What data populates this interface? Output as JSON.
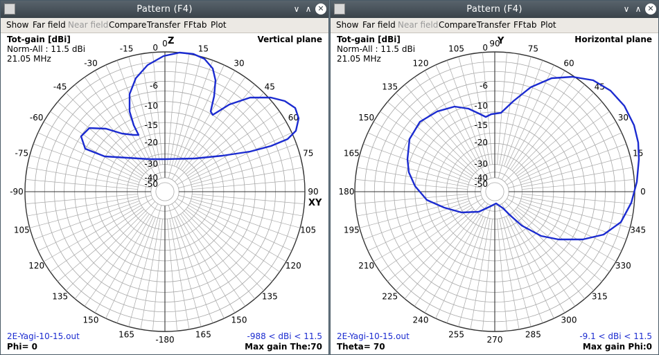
{
  "windows": [
    {
      "title": "Pattern    (F4)",
      "menu": [
        "Show",
        "Far field",
        "Near field",
        "Compare",
        "Transfer",
        "FFtab",
        "Plot"
      ],
      "menu_disabled": [
        "Near field"
      ],
      "info": {
        "quantity": "Tot-gain [dBi]",
        "norm": "Norm-All : 11.5 dBi",
        "freq": "21.05 MHz"
      },
      "plane": "Vertical plane",
      "footer": {
        "file": "2E-Yagi-10-15.out",
        "range": "-988 < dBi < 11.5",
        "cut": "Phi= 0",
        "max": "Max gain The:70"
      },
      "axes": {
        "top": "Z",
        "right": "XY"
      },
      "angle_labels": [
        "0",
        "15",
        "30",
        "45",
        "60",
        "75",
        "90",
        "105",
        "120",
        "135",
        "150",
        "165",
        "-180",
        "165",
        "150",
        "135",
        "120",
        "105",
        "-90",
        "-75",
        "-60",
        "-45",
        "-30",
        "-15"
      ],
      "db_labels": [
        "0",
        "-6",
        "-10",
        "-15",
        "-20",
        "-30",
        "-40",
        "-50"
      ]
    },
    {
      "title": "Pattern    (F4)",
      "menu": [
        "Show",
        "Far field",
        "Near field",
        "Compare",
        "Transfer",
        "FFtab",
        "Plot"
      ],
      "menu_disabled": [
        "Near field"
      ],
      "info": {
        "quantity": "Tot-gain [dBi]",
        "norm": "Norm-All : 11.5 dBi",
        "freq": "21.05 MHz"
      },
      "plane": "Horizontal plane",
      "footer": {
        "file": "2E-Yagi-10-15.out",
        "range": "-9.1 < dBi < 11.5",
        "cut": "Theta= 70",
        "max": "Max gain Phi:0"
      },
      "axes": {
        "top": "Y",
        "right": ""
      },
      "angle_labels": [
        "90",
        "75",
        "60",
        "45",
        "30",
        "15",
        "0",
        "345",
        "330",
        "315",
        "300",
        "285",
        "270",
        "255",
        "240",
        "225",
        "210",
        "195",
        "180",
        "165",
        "150",
        "135",
        "120",
        "105"
      ],
      "db_labels": [
        "0",
        "-6",
        "-10",
        "-15",
        "-20",
        "-30",
        "-40",
        "-50"
      ]
    }
  ],
  "colors": {
    "trace": "#1b2bd0",
    "grid": "#a8a8a8",
    "titlebar": "#46515a",
    "menubar": "#ece9e4"
  },
  "icons": {
    "close": "close-icon",
    "minimize": "chevron-down-icon",
    "restore": "chevron-up-icon",
    "app": "window-icon"
  }
}
